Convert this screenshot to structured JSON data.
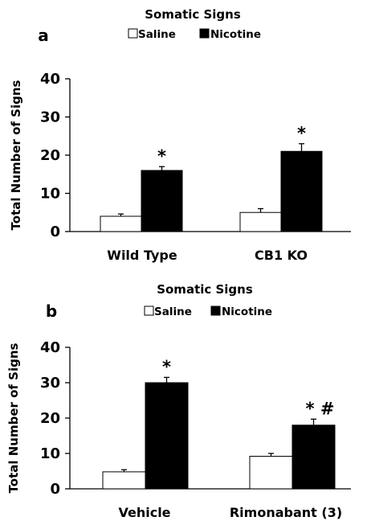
{
  "chart_data": [
    {
      "type": "bar",
      "panel": "a",
      "title": "Somatic Signs",
      "ylabel": "Total Number of Signs",
      "xlabel": "",
      "ylim": [
        0,
        40
      ],
      "yticks": [
        "0",
        "10",
        "20",
        "30",
        "40"
      ],
      "categories": [
        "Wild Type",
        "CB1 KO"
      ],
      "series": [
        {
          "name": "Saline",
          "color": "#ffffff",
          "values": [
            4,
            5
          ],
          "errors": [
            0.6,
            1.0
          ]
        },
        {
          "name": "Nicotine",
          "color": "#000000",
          "values": [
            16,
            21
          ],
          "errors": [
            1.0,
            2.0
          ]
        }
      ],
      "annotations": [
        {
          "series": 1,
          "category": 0,
          "text": "*"
        },
        {
          "series": 1,
          "category": 1,
          "text": "*"
        }
      ],
      "legend_position": "top-center",
      "grid": false
    },
    {
      "type": "bar",
      "panel": "b",
      "title": "Somatic Signs",
      "ylabel": "Total Number of Signs",
      "xlabel": "",
      "ylim": [
        0,
        40
      ],
      "yticks": [
        "0",
        "10",
        "20",
        "30",
        "40"
      ],
      "categories": [
        "Vehicle",
        "Rimonabant (3)"
      ],
      "series": [
        {
          "name": "Saline",
          "color": "#ffffff",
          "values": [
            4.8,
            9.2
          ],
          "errors": [
            0.6,
            0.8
          ]
        },
        {
          "name": "Nicotine",
          "color": "#000000",
          "values": [
            30,
            18
          ],
          "errors": [
            1.5,
            1.7
          ]
        }
      ],
      "annotations": [
        {
          "series": 1,
          "category": 0,
          "text": "*"
        },
        {
          "series": 1,
          "category": 1,
          "text": "* #"
        }
      ],
      "legend_position": "top-center",
      "grid": false
    }
  ]
}
